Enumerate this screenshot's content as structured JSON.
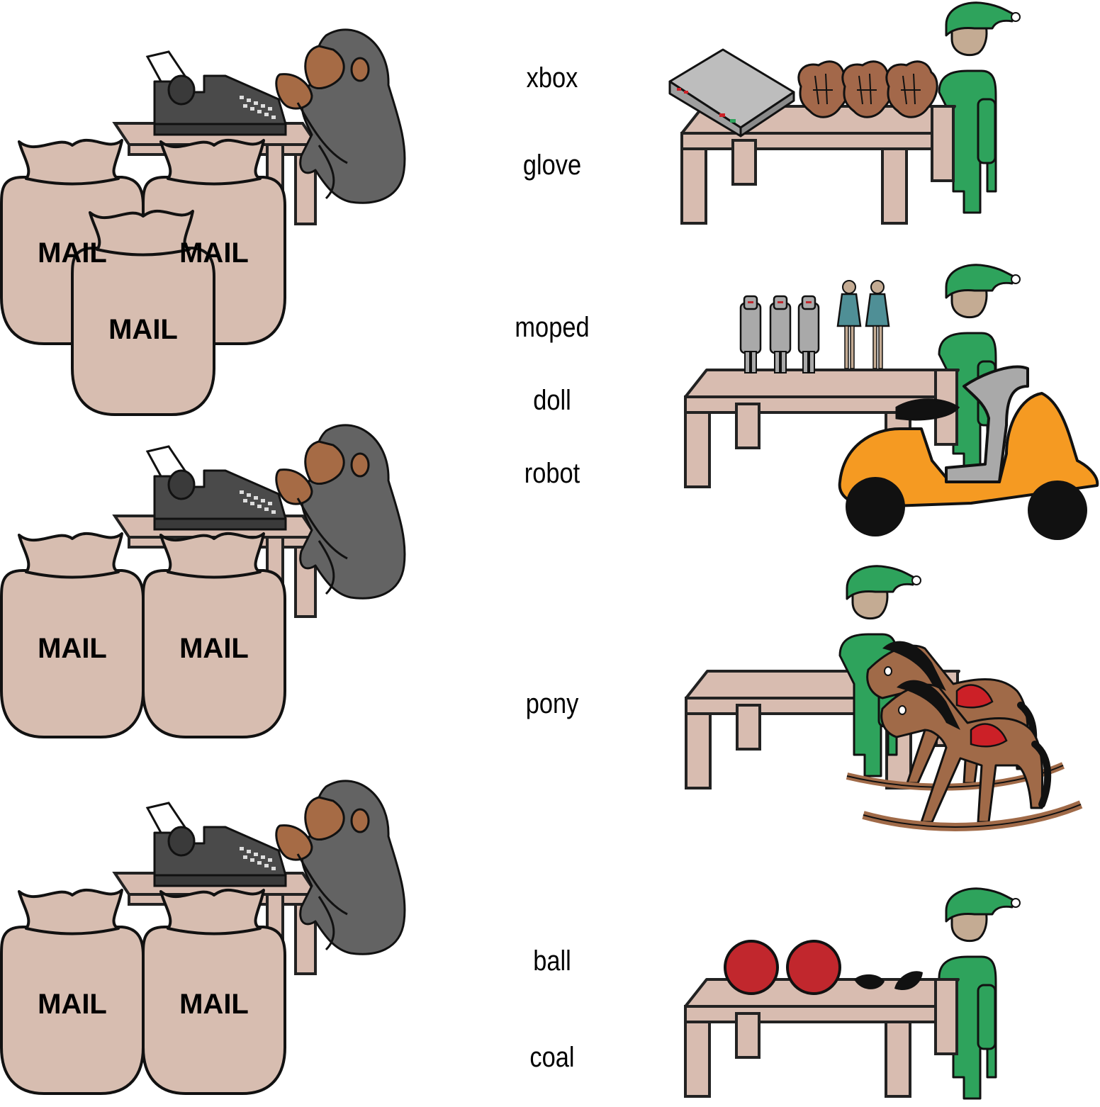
{
  "mail_label": "MAIL",
  "words": [
    "xbox",
    "glove",
    "moped",
    "doll",
    "robot",
    "pony",
    "ball",
    "coal"
  ],
  "colors": {
    "sack": "#d7bdb0",
    "table": "#d8bcb0",
    "monkey": "#636363",
    "monkey_skin": "#a66b45",
    "typewriter": "#4a4a4a",
    "elf_suit": "#2ea35c",
    "elf_face": "#c4ab93",
    "moped": "#f59a22",
    "ball": "#c1272d",
    "glove": "#a3684a",
    "robot": "#a9a9a9",
    "doll": "#4f8f96",
    "pony": "#a06a48",
    "saddle": "#cc2027",
    "rocker": "#a06a48"
  },
  "scenes": {
    "mail_rooms": [
      {
        "name": "mail-room-1",
        "sacks": 3
      },
      {
        "name": "mail-room-2",
        "sacks": 2
      },
      {
        "name": "mail-room-3",
        "sacks": 2
      }
    ],
    "workshops": [
      {
        "name": "workshop-1",
        "toys": [
          "xbox",
          "glove"
        ]
      },
      {
        "name": "workshop-2",
        "toys": [
          "moped",
          "doll",
          "robot"
        ]
      },
      {
        "name": "workshop-3",
        "toys": [
          "pony"
        ]
      },
      {
        "name": "workshop-4",
        "toys": [
          "ball",
          "coal"
        ]
      }
    ]
  }
}
